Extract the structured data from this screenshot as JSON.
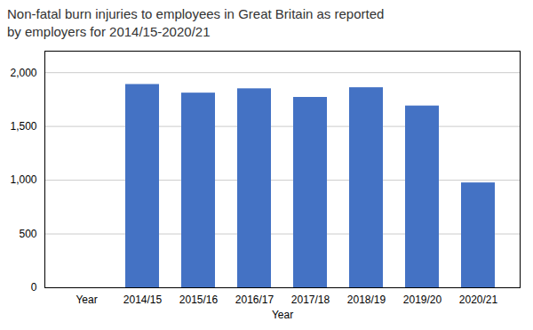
{
  "chart_data": {
    "type": "bar",
    "title": "Non-fatal burn injuries to employees in Great Britain as reported\nby employers for 2014/15-2020/21",
    "categories": [
      "Year",
      "2014/15",
      "2015/16",
      "2016/17",
      "2017/18",
      "2018/19",
      "2019/20",
      "2020/21"
    ],
    "values": [
      0,
      1890,
      1810,
      1850,
      1770,
      1860,
      1690,
      975
    ],
    "color": "#4472C4",
    "xlabel": "Year",
    "ylim": [
      0,
      2200
    ],
    "yticks": [
      0,
      500,
      {
        "value": 1000,
        "label": "1,000"
      },
      {
        "value": 1500,
        "label": "1,500"
      },
      {
        "value": 2000,
        "label": "2,000"
      }
    ],
    "grid": true
  }
}
